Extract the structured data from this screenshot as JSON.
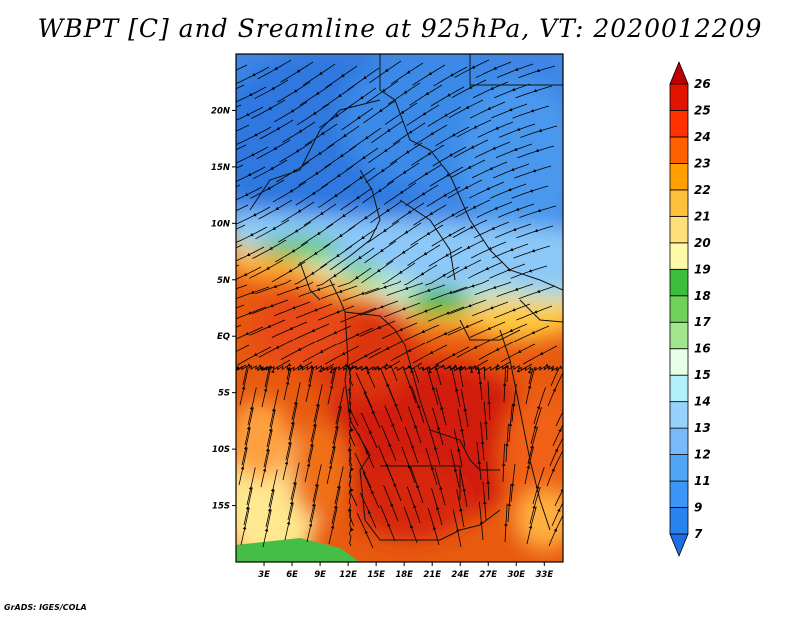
{
  "title": "WBPT [C] and Sreamline at 925hPa, VT: 2020012209",
  "footer": "GrADS: IGES/COLA",
  "axes": {
    "lat_labels": [
      "20N",
      "15N",
      "10N",
      "5N",
      "EQ",
      "5S",
      "10S",
      "15S"
    ],
    "lat_values": [
      20,
      15,
      10,
      5,
      0,
      -5,
      -10,
      -15
    ],
    "lon_labels": [
      "3E",
      "6E",
      "9E",
      "12E",
      "15E",
      "18E",
      "21E",
      "24E",
      "27E",
      "30E",
      "33E"
    ],
    "lon_values": [
      3,
      6,
      9,
      12,
      15,
      18,
      21,
      24,
      27,
      30,
      33
    ],
    "lat_range": [
      -20,
      25
    ],
    "lon_range": [
      0,
      35
    ]
  },
  "colorbar": {
    "levels": [
      "7",
      "9",
      "11",
      "12",
      "13",
      "14",
      "15",
      "16",
      "17",
      "18",
      "19",
      "20",
      "21",
      "22",
      "23",
      "24",
      "25",
      "26"
    ],
    "colors": [
      "#1e6ee6",
      "#2882f0",
      "#3c96f5",
      "#50a5f5",
      "#78b9fa",
      "#96d2fa",
      "#b4f0fa",
      "#e6ffe6",
      "#a0e68c",
      "#6ed25a",
      "#3cbe3c",
      "#fffaaa",
      "#ffe078",
      "#ffc03c",
      "#ffa000",
      "#ff6000",
      "#ff3200",
      "#e11400",
      "#c00000"
    ]
  }
}
